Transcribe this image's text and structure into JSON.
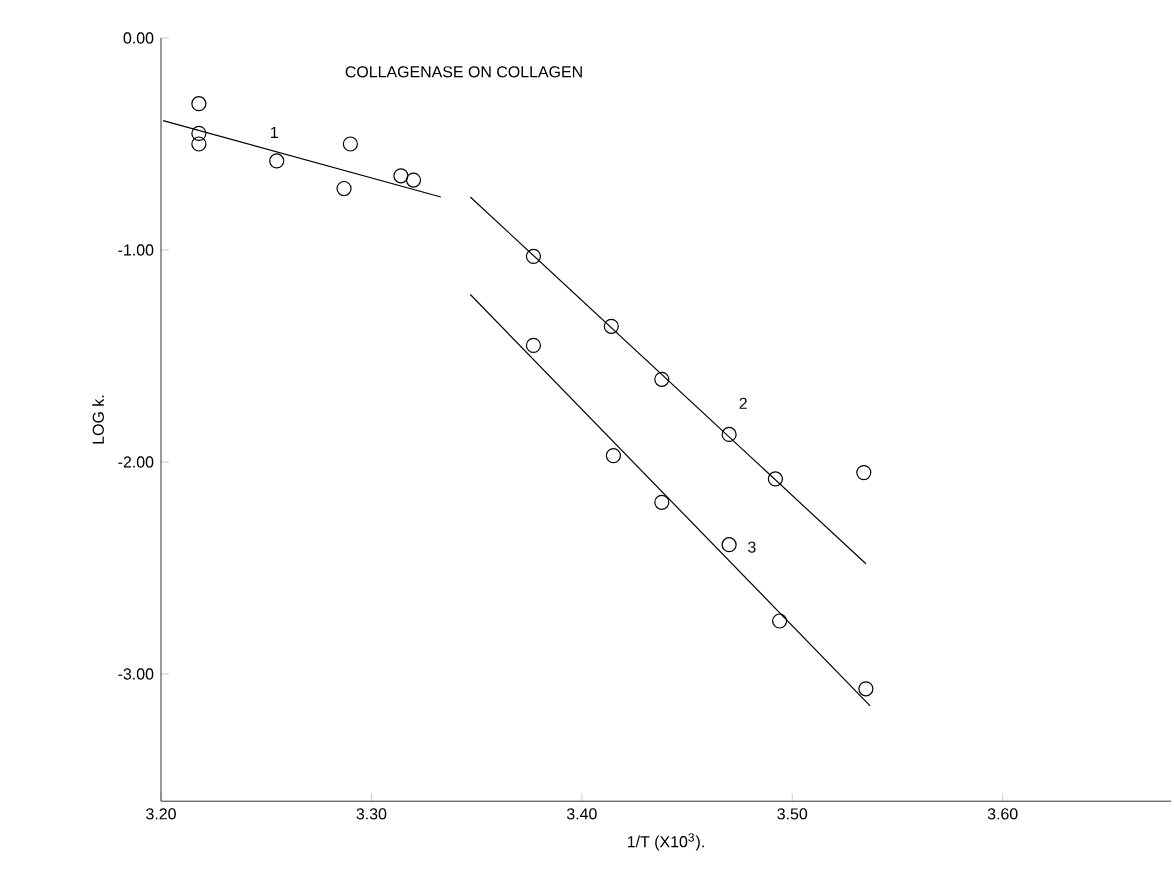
{
  "chart_data": {
    "type": "scatter",
    "title": "COLLAGENASE ON COLLAGEN",
    "xlabel": "1/T (X10$^{3}$).",
    "ylabel": "LOG k.",
    "xlim": [
      3.2,
      3.68
    ],
    "ylim": [
      -3.6,
      0
    ],
    "xticks": [
      {
        "value": 3.2,
        "label": "3.20"
      },
      {
        "value": 3.3,
        "label": "3.30"
      },
      {
        "value": 3.4,
        "label": "3.40"
      },
      {
        "value": 3.5,
        "label": "3.50"
      },
      {
        "value": 3.6,
        "label": "3.60"
      }
    ],
    "yticks": [
      {
        "value": 0,
        "label": "0.00"
      },
      {
        "value": -1,
        "label": "-1.00"
      },
      {
        "value": -2,
        "label": "-2.00"
      },
      {
        "value": -3,
        "label": "-3.00"
      }
    ],
    "series": [
      {
        "marker": "circle",
        "color": "#000000",
        "x": [
          3.218,
          3.218,
          3.218,
          3.255,
          3.29,
          3.287,
          3.314,
          3.32
        ],
        "values": [
          -0.31,
          -0.45,
          -0.5,
          -0.58,
          -0.5,
          -0.71,
          -0.65,
          -0.67
        ]
      },
      {
        "type": "line",
        "name": "1",
        "marker": "none",
        "color": "#000000",
        "x": [
          3.201,
          3.333
        ],
        "values": [
          -0.39,
          -0.75
        ]
      },
      {
        "marker": "circle",
        "color": "#000000",
        "x": [
          3.377,
          3.414,
          3.438,
          3.47,
          3.492,
          3.534
        ],
        "values": [
          -1.03,
          -1.36,
          -1.61,
          -1.87,
          -2.08,
          -2.05
        ]
      },
      {
        "type": "line",
        "name": "2",
        "marker": "none",
        "color": "#000000",
        "x": [
          3.347,
          3.535
        ],
        "values": [
          -0.75,
          -2.48
        ]
      },
      {
        "marker": "circle",
        "color": "#000000",
        "x": [
          3.377,
          3.415,
          3.438,
          3.47,
          3.494,
          3.535
        ],
        "values": [
          -1.45,
          -1.97,
          -2.19,
          -2.39,
          -2.75,
          -3.07
        ]
      },
      {
        "type": "line",
        "name": "3",
        "marker": "none",
        "color": "#000000",
        "x": [
          3.347,
          3.537
        ],
        "values": [
          -1.21,
          -3.15
        ]
      }
    ]
  }
}
